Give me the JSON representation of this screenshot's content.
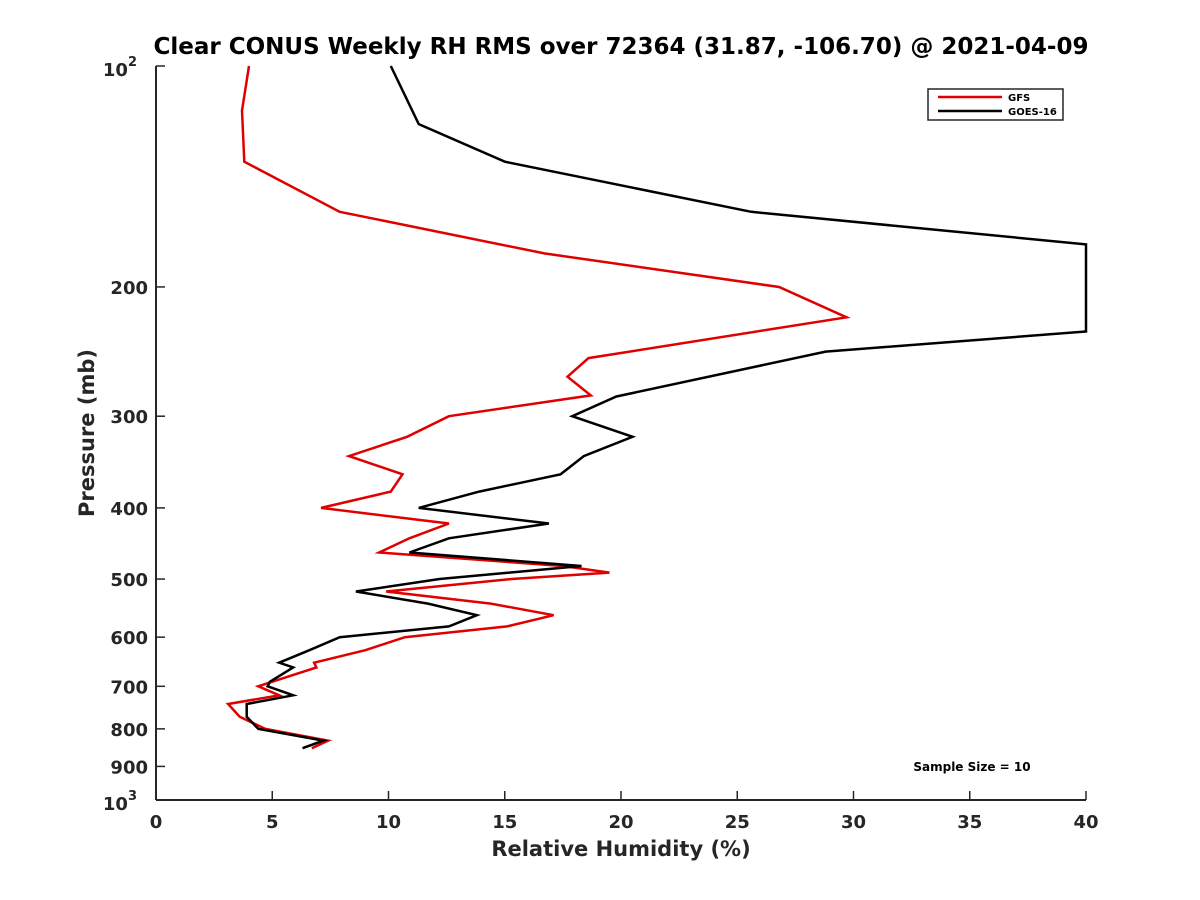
{
  "chart_data": {
    "type": "line",
    "title": "Clear CONUS Weekly RH RMS over 72364 (31.87, -106.70) @ 2021-04-09",
    "xlabel": "Relative Humidity (%)",
    "ylabel": "Pressure (mb)",
    "xlim": [
      0,
      40
    ],
    "ylim": [
      100,
      1000
    ],
    "y_scale": "log",
    "y_reversed": true,
    "grid": false,
    "legend_position": "top-right",
    "x_ticks": [
      0,
      5,
      10,
      15,
      20,
      25,
      30,
      35,
      40
    ],
    "x_tick_labels": [
      "0",
      "5",
      "10",
      "15",
      "20",
      "25",
      "30",
      "35",
      "40"
    ],
    "y_ticks": [
      100,
      200,
      300,
      400,
      500,
      600,
      700,
      800,
      900,
      1000
    ],
    "y_tick_labels": [
      {
        "base": "10",
        "exp": "2"
      },
      {
        "base": "200",
        "exp": ""
      },
      {
        "base": "300",
        "exp": ""
      },
      {
        "base": "400",
        "exp": ""
      },
      {
        "base": "500",
        "exp": ""
      },
      {
        "base": "600",
        "exp": ""
      },
      {
        "base": "700",
        "exp": ""
      },
      {
        "base": "800",
        "exp": ""
      },
      {
        "base": "900",
        "exp": ""
      },
      {
        "base": "10",
        "exp": "3"
      }
    ],
    "annotation": "Sample Size = 10",
    "series": [
      {
        "name": "GFS",
        "color": "#e00000",
        "points": [
          [
            4.0,
            100
          ],
          [
            3.7,
            115
          ],
          [
            3.8,
            135
          ],
          [
            7.9,
            158
          ],
          [
            16.7,
            180
          ],
          [
            26.8,
            200
          ],
          [
            29.7,
            220
          ],
          [
            18.6,
            250
          ],
          [
            17.7,
            265
          ],
          [
            18.7,
            281
          ],
          [
            12.6,
            300
          ],
          [
            10.8,
            320
          ],
          [
            8.3,
            340
          ],
          [
            10.6,
            360
          ],
          [
            10.1,
            380
          ],
          [
            7.1,
            400
          ],
          [
            12.6,
            420
          ],
          [
            10.9,
            440
          ],
          [
            9.6,
            460
          ],
          [
            17.5,
            480
          ],
          [
            19.5,
            490
          ],
          [
            15.3,
            500
          ],
          [
            9.9,
            520
          ],
          [
            14.4,
            540
          ],
          [
            17.1,
            560
          ],
          [
            15.1,
            580
          ],
          [
            10.7,
            600
          ],
          [
            9.0,
            625
          ],
          [
            6.8,
            650
          ],
          [
            6.9,
            660
          ],
          [
            5.0,
            690
          ],
          [
            4.4,
            700
          ],
          [
            5.3,
            720
          ],
          [
            3.1,
            740
          ],
          [
            3.6,
            770
          ],
          [
            4.7,
            800
          ],
          [
            7.4,
            830
          ],
          [
            6.7,
            850
          ]
        ]
      },
      {
        "name": "GOES-16",
        "color": "#000000",
        "points": [
          [
            10.1,
            100
          ],
          [
            11.3,
            120
          ],
          [
            15.0,
            135
          ],
          [
            25.6,
            158
          ],
          [
            40.0,
            175
          ],
          [
            40.0,
            230
          ],
          [
            28.8,
            245
          ],
          [
            19.8,
            282
          ],
          [
            17.9,
            300
          ],
          [
            20.5,
            320
          ],
          [
            18.4,
            340
          ],
          [
            17.4,
            360
          ],
          [
            13.9,
            380
          ],
          [
            11.3,
            400
          ],
          [
            16.9,
            420
          ],
          [
            12.6,
            440
          ],
          [
            10.9,
            460
          ],
          [
            18.3,
            480
          ],
          [
            12.2,
            500
          ],
          [
            8.6,
            520
          ],
          [
            11.7,
            540
          ],
          [
            13.8,
            560
          ],
          [
            12.6,
            580
          ],
          [
            7.9,
            600
          ],
          [
            6.6,
            625
          ],
          [
            5.3,
            650
          ],
          [
            5.9,
            660
          ],
          [
            4.9,
            690
          ],
          [
            4.8,
            700
          ],
          [
            5.9,
            720
          ],
          [
            3.9,
            740
          ],
          [
            3.9,
            770
          ],
          [
            4.4,
            800
          ],
          [
            7.2,
            830
          ],
          [
            6.3,
            850
          ]
        ]
      }
    ]
  }
}
